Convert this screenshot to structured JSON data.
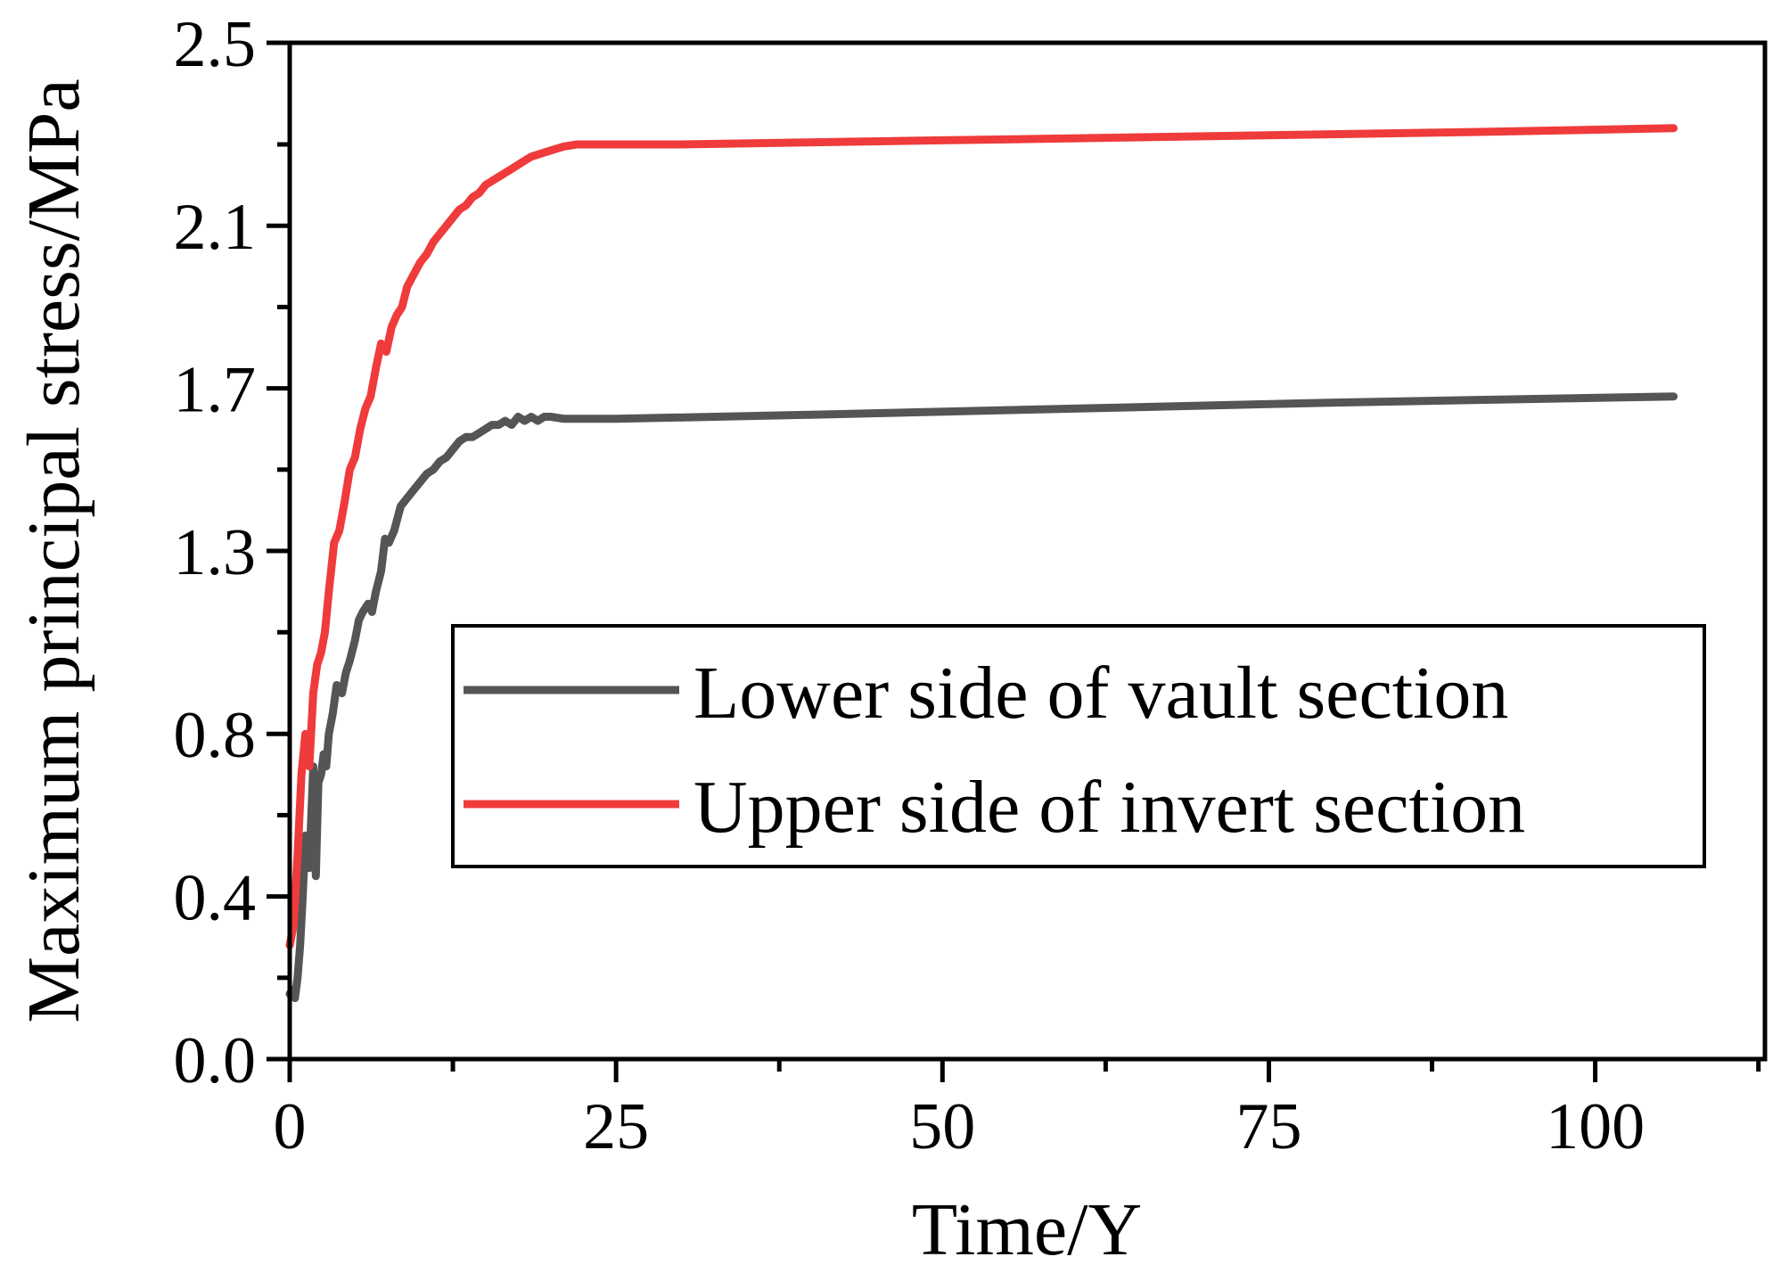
{
  "chart_data": {
    "type": "line",
    "title": "",
    "xlabel": "Time/Y",
    "ylabel": "Maximum principal stress/MPa",
    "xlim": [
      0,
      113
    ],
    "ylim": [
      0,
      2.5
    ],
    "xticks": [
      "0",
      "25",
      "50",
      "75",
      "100"
    ],
    "xtick_values": [
      0,
      25,
      50,
      75,
      100
    ],
    "xminor_values": [
      12.5,
      37.5,
      62.5,
      87.5,
      112.5
    ],
    "yticks": [
      "0.0",
      "0.4",
      "0.8",
      "1.3",
      "1.7",
      "2.1",
      "2.5"
    ],
    "ytick_values": [
      0.0,
      0.4,
      0.8,
      1.25,
      1.65,
      2.05,
      2.5
    ],
    "yminor_values": [
      0.2,
      0.6,
      1.05,
      1.45,
      1.85,
      2.25
    ],
    "grid": false,
    "legend_position": "lower-right",
    "series": [
      {
        "name": "Lower side of vault section",
        "color": "#555555",
        "x": [
          0.0,
          0.2,
          0.4,
          0.6,
          0.8,
          1.0,
          1.2,
          1.5,
          1.8,
          2.0,
          2.2,
          2.4,
          2.6,
          2.8,
          3.0,
          3.3,
          3.6,
          4.0,
          4.3,
          4.6,
          5.0,
          5.3,
          5.6,
          6.0,
          6.3,
          6.6,
          7.0,
          7.3,
          7.6,
          8.0,
          8.5,
          9.0,
          9.5,
          10.0,
          10.5,
          11.0,
          11.5,
          12.0,
          12.5,
          13.0,
          13.5,
          14.0,
          14.5,
          15.0,
          15.5,
          16.0,
          16.5,
          17.0,
          17.5,
          18.0,
          18.5,
          19.0,
          19.5,
          20.0,
          21.0,
          22.0,
          25.0,
          40.0,
          60.0,
          80.0,
          106.0
        ],
        "y": [
          0.16,
          0.17,
          0.15,
          0.2,
          0.28,
          0.4,
          0.55,
          0.47,
          0.72,
          0.45,
          0.68,
          0.7,
          0.75,
          0.72,
          0.8,
          0.85,
          0.92,
          0.9,
          0.95,
          0.98,
          1.03,
          1.08,
          1.1,
          1.12,
          1.1,
          1.15,
          1.2,
          1.28,
          1.27,
          1.3,
          1.36,
          1.38,
          1.4,
          1.42,
          1.44,
          1.45,
          1.47,
          1.48,
          1.5,
          1.52,
          1.53,
          1.53,
          1.54,
          1.55,
          1.56,
          1.56,
          1.57,
          1.56,
          1.58,
          1.57,
          1.58,
          1.57,
          1.58,
          1.58,
          1.575,
          1.575,
          1.575,
          1.585,
          1.6,
          1.615,
          1.63
        ]
      },
      {
        "name": "Upper side of invert section",
        "color": "#ef3b3b",
        "x": [
          0.0,
          0.3,
          0.6,
          0.9,
          1.2,
          1.5,
          1.8,
          2.1,
          2.4,
          2.7,
          3.0,
          3.4,
          3.8,
          4.2,
          4.6,
          5.0,
          5.4,
          5.8,
          6.2,
          6.6,
          7.0,
          7.4,
          7.8,
          8.2,
          8.6,
          9.0,
          9.5,
          10.0,
          10.5,
          11.0,
          11.5,
          12.0,
          12.5,
          13.0,
          13.5,
          14.0,
          14.5,
          15.0,
          15.5,
          16.0,
          16.5,
          17.0,
          17.5,
          18.0,
          18.5,
          19.0,
          19.5,
          20.0,
          20.5,
          21.0,
          22.0,
          23.0,
          30.0,
          50.0,
          70.0,
          90.0,
          106.0
        ],
        "y": [
          0.28,
          0.33,
          0.5,
          0.7,
          0.8,
          0.72,
          0.9,
          0.97,
          1.0,
          1.05,
          1.15,
          1.27,
          1.3,
          1.37,
          1.45,
          1.48,
          1.55,
          1.6,
          1.63,
          1.7,
          1.76,
          1.74,
          1.8,
          1.83,
          1.85,
          1.9,
          1.93,
          1.96,
          1.98,
          2.01,
          2.03,
          2.05,
          2.07,
          2.09,
          2.1,
          2.12,
          2.13,
          2.15,
          2.16,
          2.17,
          2.18,
          2.19,
          2.2,
          2.21,
          2.22,
          2.225,
          2.23,
          2.235,
          2.24,
          2.245,
          2.25,
          2.25,
          2.25,
          2.26,
          2.27,
          2.28,
          2.29
        ]
      }
    ]
  }
}
